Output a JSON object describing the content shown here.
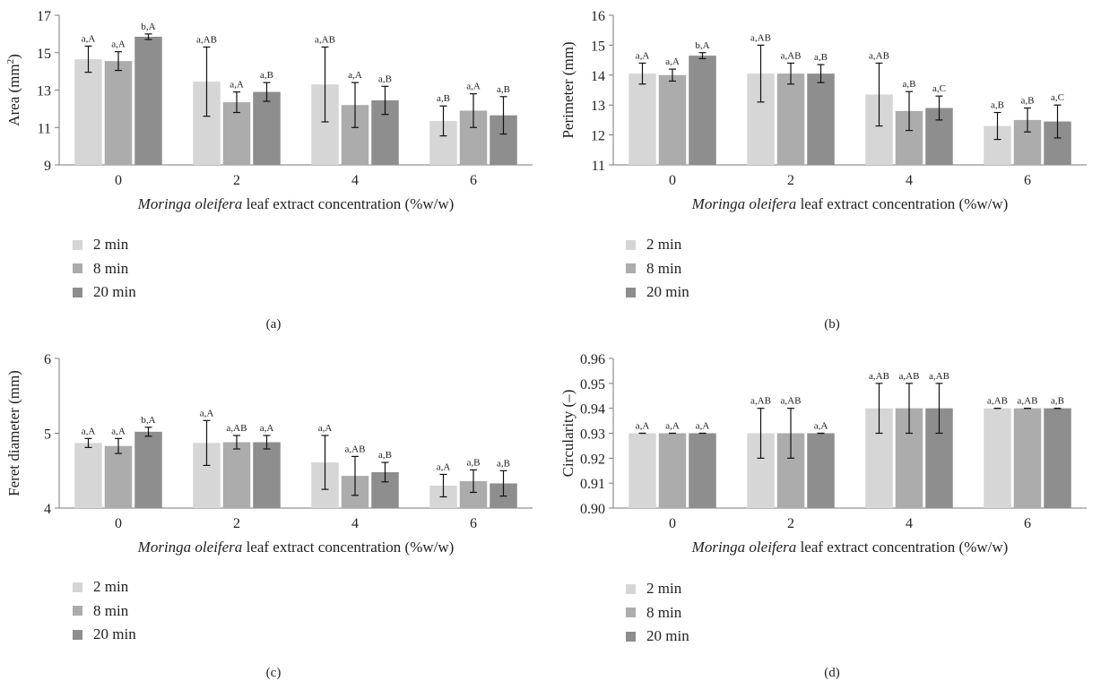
{
  "colors": {
    "series": [
      "#d6d6d6",
      "#acacac",
      "#8e8e8e"
    ],
    "axis": "#7a7a7a",
    "error": "#111111"
  },
  "legend": [
    "2 min",
    "8 min",
    "20 min"
  ],
  "chart_data": [
    {
      "panel": "(a)",
      "type": "bar",
      "ylabel_parts": [
        "Area (mm",
        "2",
        ")"
      ],
      "xlabel_italic": "Moringa oleifera",
      "xlabel_rest": " leaf extract concentration (%w/w)",
      "categories": [
        "0",
        "2",
        "4",
        "6"
      ],
      "ylim": [
        9,
        17
      ],
      "yticks": [
        "9",
        "11",
        "13",
        "15",
        "17"
      ],
      "series": [
        {
          "name": "2 min",
          "values": [
            14.65,
            13.45,
            13.3,
            11.35
          ],
          "errors": [
            0.7,
            1.85,
            2.0,
            0.8
          ],
          "labels": [
            "a,A",
            "a,AB",
            "a,AB",
            "a,B"
          ]
        },
        {
          "name": "8 min",
          "values": [
            14.55,
            12.35,
            12.2,
            11.9
          ],
          "errors": [
            0.5,
            0.55,
            1.2,
            0.9
          ],
          "labels": [
            "a,A",
            "a,A",
            "a,A",
            "a,A"
          ]
        },
        {
          "name": "20 min",
          "values": [
            15.85,
            12.9,
            12.45,
            11.65
          ],
          "errors": [
            0.15,
            0.5,
            0.75,
            1.0
          ],
          "labels": [
            "b,A",
            "a,B",
            "a,B",
            "a,B"
          ]
        }
      ]
    },
    {
      "panel": "(b)",
      "type": "bar",
      "ylabel_parts": [
        "Perimeter (mm)"
      ],
      "xlabel_italic": "Moringa oleifera",
      "xlabel_rest": " leaf extract concentration (%w/w)",
      "categories": [
        "0",
        "2",
        "4",
        "6"
      ],
      "ylim": [
        11,
        16
      ],
      "yticks": [
        "11",
        "12",
        "13",
        "14",
        "15",
        "16"
      ],
      "series": [
        {
          "name": "2 min",
          "values": [
            14.05,
            14.05,
            13.35,
            12.3
          ],
          "errors": [
            0.35,
            0.95,
            1.05,
            0.45
          ],
          "labels": [
            "a,A",
            "a,AB",
            "a,AB",
            "a,B"
          ]
        },
        {
          "name": "8 min",
          "values": [
            14.0,
            14.05,
            12.8,
            12.5
          ],
          "errors": [
            0.2,
            0.35,
            0.65,
            0.4
          ],
          "labels": [
            "a,A",
            "a,AB",
            "a,B",
            "a,B"
          ]
        },
        {
          "name": "20 min",
          "values": [
            14.65,
            14.05,
            12.9,
            12.45
          ],
          "errors": [
            0.1,
            0.3,
            0.4,
            0.55
          ],
          "labels": [
            "b,A",
            "a,B",
            "a,C",
            "a,C"
          ]
        }
      ]
    },
    {
      "panel": "(c)",
      "type": "bar",
      "ylabel_parts": [
        "Feret diameter (mm)"
      ],
      "xlabel_italic": "Moringa oleifera",
      "xlabel_rest": " leaf extract concentration (%w/w)",
      "categories": [
        "0",
        "2",
        "4",
        "6"
      ],
      "ylim": [
        4,
        6
      ],
      "yticks": [
        "4",
        "5",
        "6"
      ],
      "series": [
        {
          "name": "2 min",
          "values": [
            4.87,
            4.87,
            4.61,
            4.3
          ],
          "errors": [
            0.06,
            0.3,
            0.36,
            0.15
          ],
          "labels": [
            "a,A",
            "a,A",
            "a,A",
            "a,A"
          ]
        },
        {
          "name": "8 min",
          "values": [
            4.83,
            4.88,
            4.43,
            4.36
          ],
          "errors": [
            0.1,
            0.09,
            0.26,
            0.15
          ],
          "labels": [
            "a,A",
            "a,AB",
            "a,AB",
            "a,B"
          ]
        },
        {
          "name": "20 min",
          "values": [
            5.02,
            4.88,
            4.48,
            4.33
          ],
          "errors": [
            0.06,
            0.09,
            0.13,
            0.17
          ],
          "labels": [
            "b,A",
            "a,A",
            "a,B",
            "a,B"
          ]
        }
      ]
    },
    {
      "panel": "(d)",
      "type": "bar",
      "ylabel_parts": [
        "Circularity (–)"
      ],
      "xlabel_italic": "Moringa oleifera",
      "xlabel_rest": " leaf extract concentration (%w/w)",
      "categories": [
        "0",
        "2",
        "4",
        "6"
      ],
      "ylim": [
        0.9,
        0.96
      ],
      "yticks": [
        "0.90",
        "0.91",
        "0.92",
        "0.93",
        "0.94",
        "0.95",
        "0.96"
      ],
      "series": [
        {
          "name": "2 min",
          "values": [
            0.93,
            0.93,
            0.94,
            0.94
          ],
          "errors": [
            0,
            0.01,
            0.01,
            0
          ],
          "labels": [
            "a,A",
            "a,AB",
            "a,AB",
            "a,AB"
          ]
        },
        {
          "name": "8 min",
          "values": [
            0.93,
            0.93,
            0.94,
            0.94
          ],
          "errors": [
            0,
            0.01,
            0.01,
            0
          ],
          "labels": [
            "a,A",
            "a,AB",
            "a,AB",
            "a,AB"
          ]
        },
        {
          "name": "20 min",
          "values": [
            0.93,
            0.93,
            0.94,
            0.94
          ],
          "errors": [
            0,
            0,
            0.01,
            0
          ],
          "labels": [
            "a,A",
            "a,A",
            "a,AB",
            "a,B"
          ]
        }
      ]
    }
  ]
}
